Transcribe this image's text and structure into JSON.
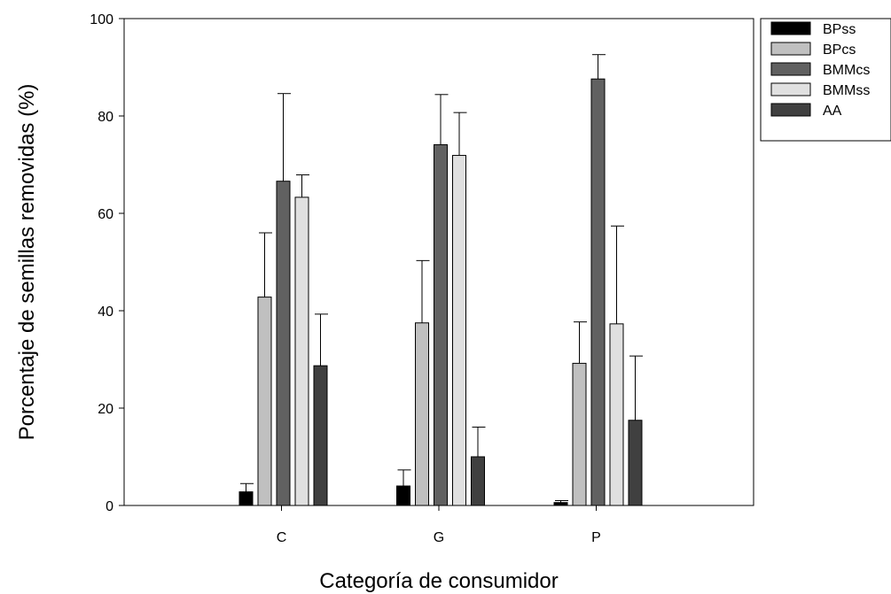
{
  "chart_data": {
    "type": "bar",
    "title": "",
    "xlabel": "Categoría de consumidor",
    "ylabel": "Porcentaje de semillas removidas (%)",
    "ylim": [
      0,
      100
    ],
    "yticks": [
      "0",
      "20",
      "40",
      "60",
      "80",
      "100"
    ],
    "categories": [
      "C",
      "G",
      "P"
    ],
    "error_bars": "upper",
    "legend_position": "top-right outside",
    "series": [
      {
        "name": "BPss",
        "color": "#000000",
        "values": [
          2.8,
          4.0,
          0.6
        ],
        "errors": [
          1.7,
          3.3,
          0.4
        ]
      },
      {
        "name": "BPcs",
        "color": "#c0c0c0",
        "values": [
          42.8,
          37.5,
          29.2
        ],
        "errors": [
          13.2,
          12.8,
          8.5
        ]
      },
      {
        "name": "BMMcs",
        "color": "#616161",
        "values": [
          66.6,
          74.1,
          87.6
        ],
        "errors": [
          18.0,
          10.3,
          5.0
        ]
      },
      {
        "name": "BMMss",
        "color": "#e0e0e0",
        "values": [
          63.3,
          71.9,
          37.3
        ],
        "errors": [
          4.6,
          8.8,
          20.1
        ]
      },
      {
        "name": "AA",
        "color": "#404040",
        "values": [
          28.7,
          10.0,
          17.5
        ],
        "errors": [
          10.6,
          6.1,
          13.2
        ]
      }
    ]
  }
}
